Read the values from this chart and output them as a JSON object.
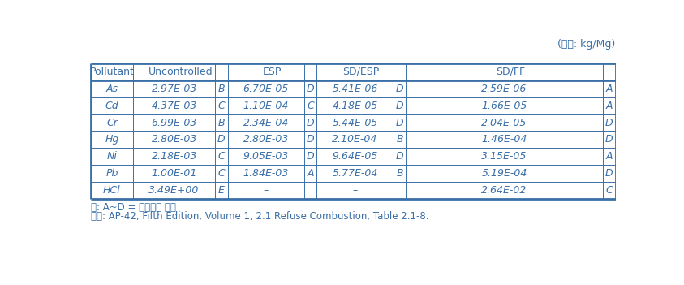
{
  "unit_label": "(단위: kg/Mg)",
  "rows": [
    [
      "As",
      "2.97E-03",
      "B",
      "6.70E-05",
      "D",
      "5.41E-06",
      "D",
      "2.59E-06",
      "A"
    ],
    [
      "Cd",
      "4.37E-03",
      "C",
      "1.10E-04",
      "C",
      "4.18E-05",
      "D",
      "1.66E-05",
      "A"
    ],
    [
      "Cr",
      "6.99E-03",
      "B",
      "2.34E-04",
      "D",
      "5.44E-05",
      "D",
      "2.04E-05",
      "D"
    ],
    [
      "Hg",
      "2.80E-03",
      "D",
      "2.80E-03",
      "D",
      "2.10E-04",
      "B",
      "1.46E-04",
      "D"
    ],
    [
      "Ni",
      "2.18E-03",
      "C",
      "9.05E-03",
      "D",
      "9.64E-05",
      "D",
      "3.15E-05",
      "A"
    ],
    [
      "Pb",
      "1.00E-01",
      "C",
      "1.84E-03",
      "A",
      "5.77E-04",
      "B",
      "5.19E-04",
      "D"
    ],
    [
      "HCl",
      "3.49E+00",
      "E",
      "–",
      "",
      "–",
      "",
      "2.64E-02",
      "C"
    ]
  ],
  "note1": "주: A~D = 배출계수 등급",
  "note2": "자료: AP-42, Fifth Edition, Volume 1, 2.1 Refuse Combustion, Table 2.1-8.",
  "text_color": "#3a6fa8",
  "border_color": "#3a6fa8",
  "thick_lw": 2.0,
  "thin_lw": 0.7,
  "font_size": 9.0,
  "note_font_size": 8.5
}
